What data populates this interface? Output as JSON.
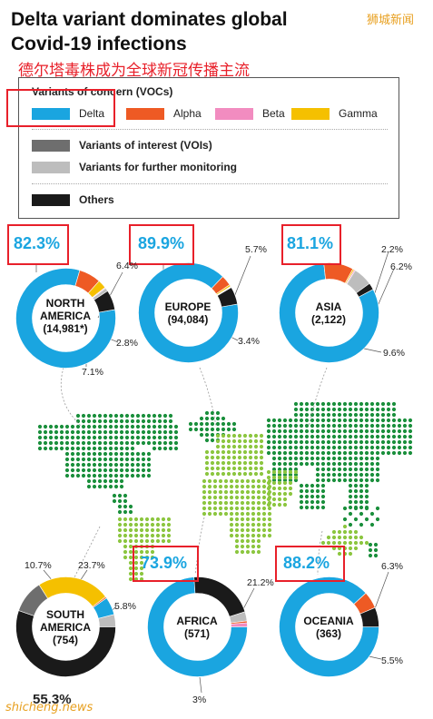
{
  "title_line1": "Delta variant dominates global",
  "title_line2": "Covid-19 infections",
  "title_cn": "德尔塔毒株成为全球新冠传播主流",
  "watermark_top": "狮城新闻",
  "watermark_bottom": "shicheng.news",
  "legend": {
    "voc_header": "Variants of concern (VOCs)",
    "voc": [
      {
        "name": "Delta",
        "color": "#1aa5e0"
      },
      {
        "name": "Alpha",
        "color": "#ee5a24"
      },
      {
        "name": "Beta",
        "color": "#f28cc0"
      },
      {
        "name": "Gamma",
        "color": "#f5c000"
      }
    ],
    "voi": {
      "name": "Variants of interest (VOIs)",
      "color": "#6e6e6e"
    },
    "vfm": {
      "name": "Variants for further monitoring",
      "color": "#bdbdbd"
    },
    "others": {
      "name": "Others",
      "color": "#1a1a1a"
    }
  },
  "chart_data": {
    "type": "donut",
    "regions": [
      {
        "name_line1": "NORTH",
        "name_line2": "AMERICA",
        "count": "(14,981*)",
        "main_label": "82.3%",
        "labels": [
          "6.4%",
          "2.8%",
          "7.1%"
        ],
        "slices": [
          {
            "variant": "Delta",
            "value": 82.3
          },
          {
            "variant": "Alpha",
            "value": 7.1
          },
          {
            "variant": "Gamma",
            "value": 2.8
          },
          {
            "variant": "Beta",
            "value": 0.3
          },
          {
            "variant": "Variants for further monitoring",
            "value": 1.1
          },
          {
            "variant": "Others",
            "value": 6.4
          }
        ]
      },
      {
        "name_line1": "EUROPE",
        "name_line2": "",
        "count": "(94,084)",
        "main_label": "89.9%",
        "labels": [
          "5.7%",
          "3.4%"
        ],
        "slices": [
          {
            "variant": "Delta",
            "value": 89.9
          },
          {
            "variant": "Alpha",
            "value": 3.4
          },
          {
            "variant": "Gamma",
            "value": 0.6
          },
          {
            "variant": "Beta",
            "value": 0.2
          },
          {
            "variant": "Variants for further monitoring",
            "value": 0.2
          },
          {
            "variant": "Others",
            "value": 5.7
          }
        ]
      },
      {
        "name_line1": "ASIA",
        "name_line2": "",
        "count": "(2,122)",
        "main_label": "81.1%",
        "labels": [
          "2.2%",
          "6.2%",
          "9.6%"
        ],
        "slices": [
          {
            "variant": "Delta",
            "value": 81.1
          },
          {
            "variant": "Alpha",
            "value": 9.6
          },
          {
            "variant": "Gamma",
            "value": 0.5
          },
          {
            "variant": "Beta",
            "value": 0.4
          },
          {
            "variant": "Variants for further monitoring",
            "value": 6.2
          },
          {
            "variant": "Others",
            "value": 2.2
          }
        ]
      },
      {
        "name_line1": "SOUTH",
        "name_line2": "AMERICA",
        "count": "(754)",
        "main_label": "55.3%",
        "labels": [
          "10.7%",
          "23.7%",
          "5.8%"
        ],
        "slices": [
          {
            "variant": "Others",
            "value": 55.3
          },
          {
            "variant": "Variants of interest (VOIs)",
            "value": 10.7
          },
          {
            "variant": "Gamma",
            "value": 23.7
          },
          {
            "variant": "Alpha",
            "value": 0.5
          },
          {
            "variant": "Delta",
            "value": 5.8
          },
          {
            "variant": "Variants for further monitoring",
            "value": 4.0
          }
        ]
      },
      {
        "name_line1": "AFRICA",
        "name_line2": "",
        "count": "(571)",
        "main_label": "73.9%",
        "labels": [
          "21.2%",
          "3%"
        ],
        "slices": [
          {
            "variant": "Delta",
            "value": 73.9
          },
          {
            "variant": "Others",
            "value": 21.2
          },
          {
            "variant": "Variants for further monitoring",
            "value": 3.0
          },
          {
            "variant": "Alpha",
            "value": 0.6
          },
          {
            "variant": "Beta",
            "value": 1.3
          }
        ]
      },
      {
        "name_line1": "OCEANIA",
        "name_line2": "",
        "count": "(363)",
        "main_label": "88.2%",
        "labels": [
          "6.3%",
          "5.5%"
        ],
        "slices": [
          {
            "variant": "Delta",
            "value": 88.2
          },
          {
            "variant": "Alpha",
            "value": 5.5
          },
          {
            "variant": "Others",
            "value": 6.3
          }
        ]
      }
    ]
  }
}
